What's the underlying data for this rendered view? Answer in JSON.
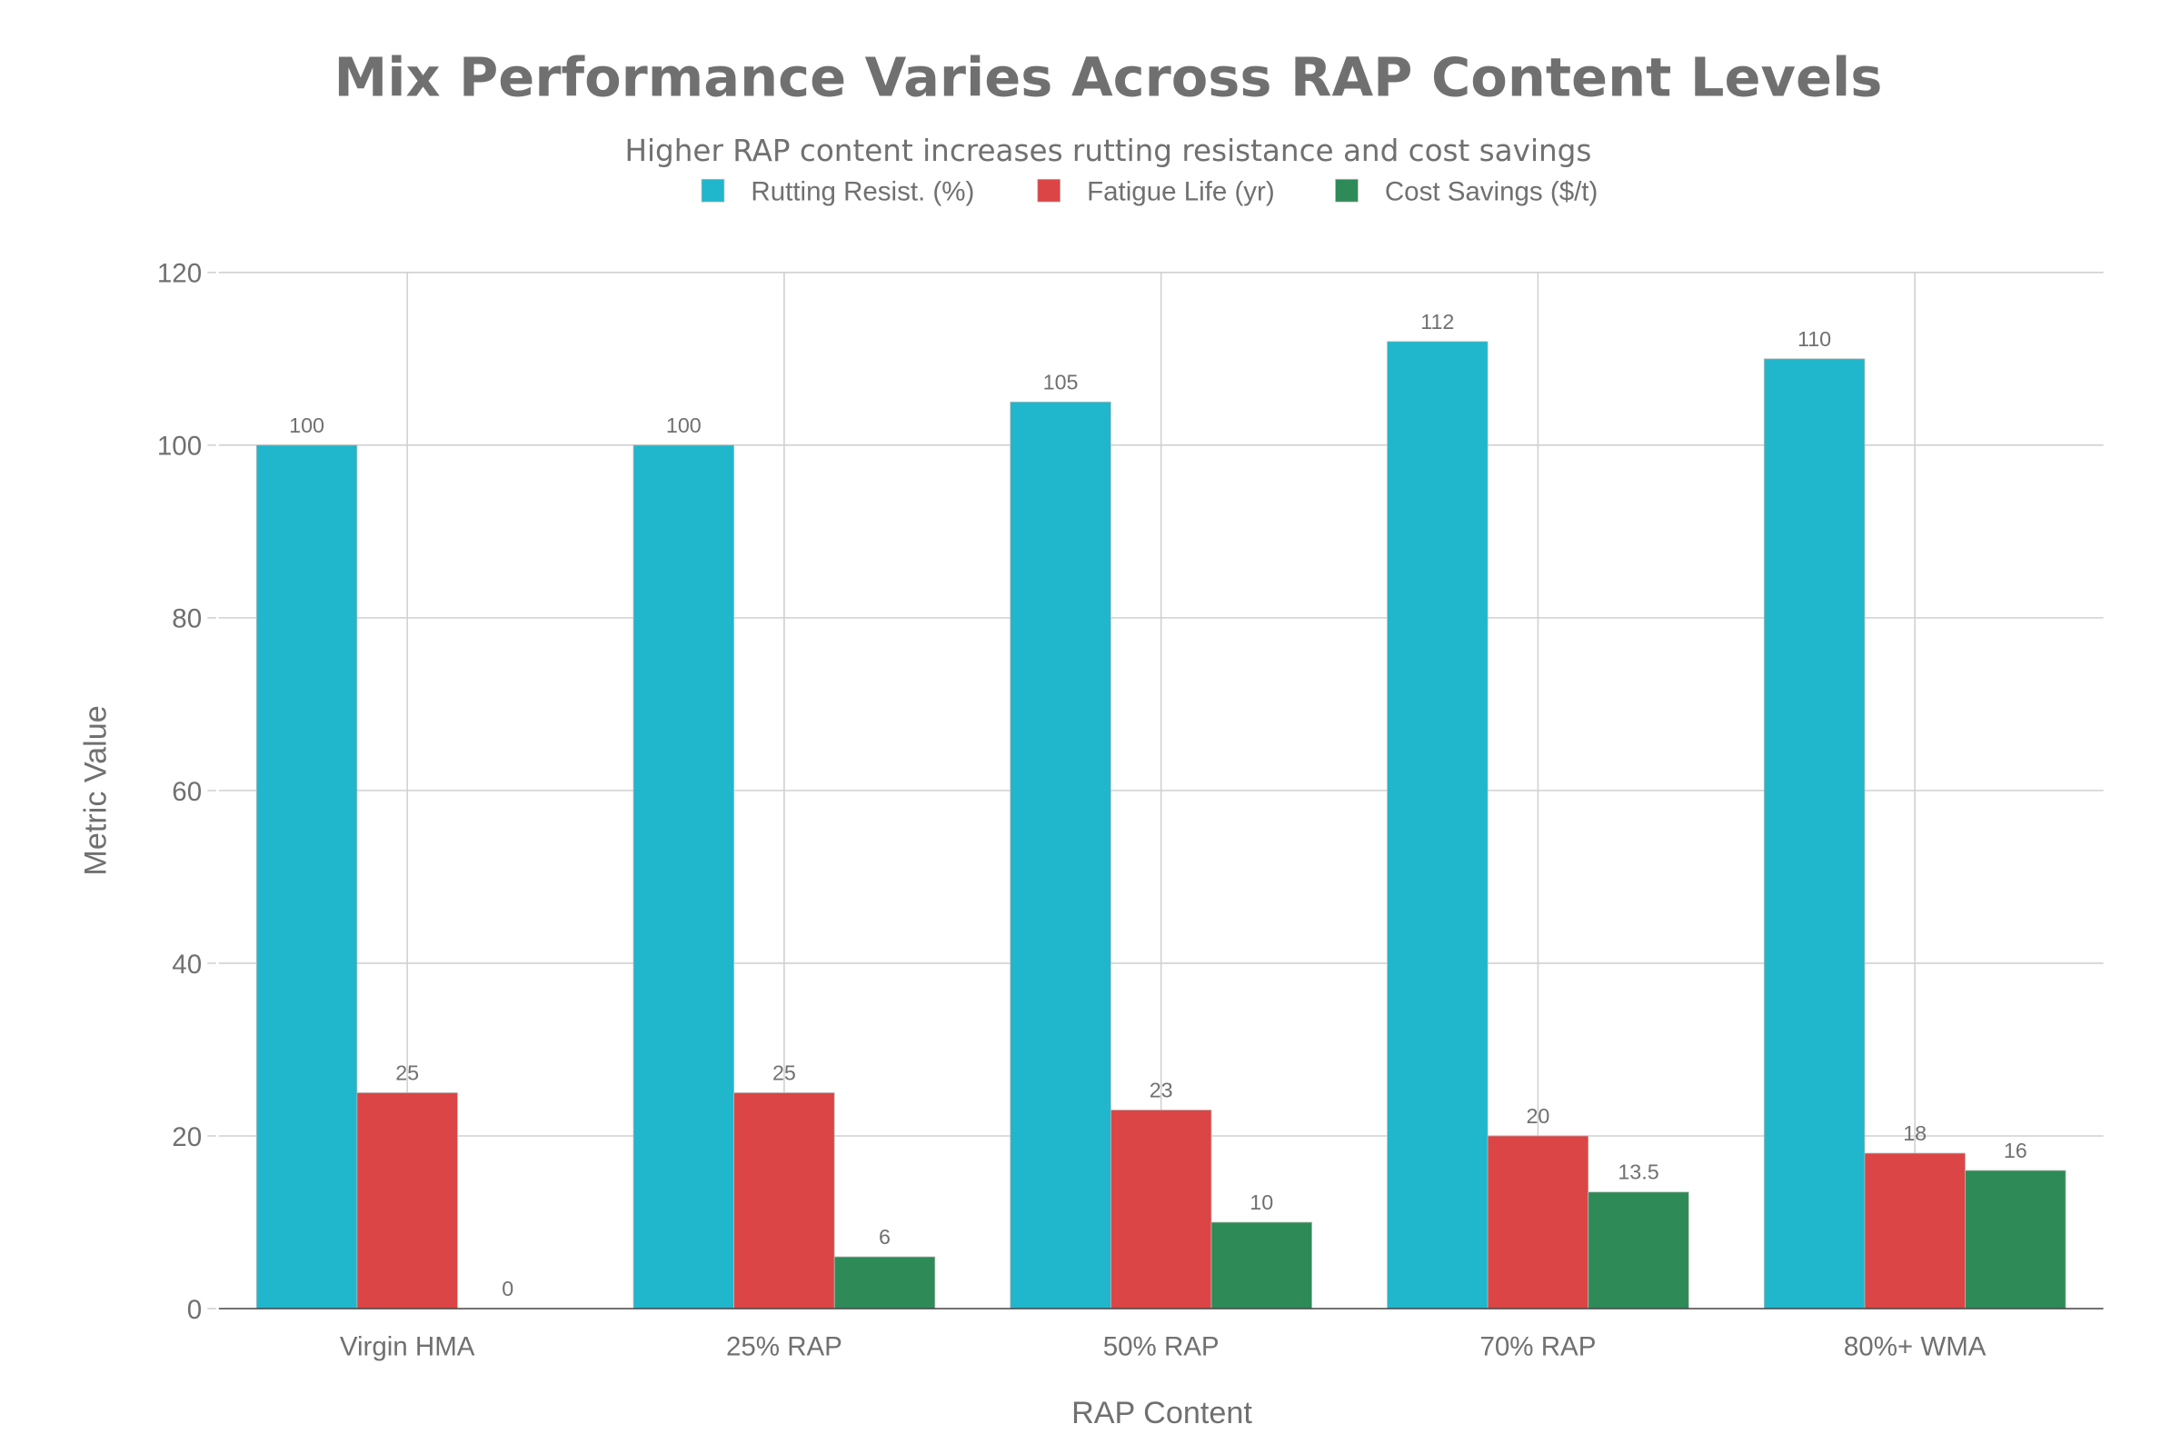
{
  "chart_data": {
    "type": "bar",
    "title": "Mix Performance Varies Across RAP Content Levels",
    "subtitle": "Higher RAP content increases rutting resistance and cost savings",
    "xlabel": "RAP Content",
    "ylabel": "Metric Value",
    "categories": [
      "Virgin HMA",
      "25% RAP",
      "50% RAP",
      "70% RAP",
      "80%+ WMA"
    ],
    "series": [
      {
        "name": "Rutting Resist. (%)",
        "color": "#20B6CC",
        "values": [
          100,
          100,
          105,
          112,
          110
        ],
        "labels": [
          "100",
          "100",
          "105",
          "112",
          "110"
        ]
      },
      {
        "name": "Fatigue Life (yr)",
        "color": "#DC4545",
        "values": [
          25,
          25,
          23,
          20,
          18
        ],
        "labels": [
          "25",
          "25",
          "23",
          "20",
          "18"
        ]
      },
      {
        "name": "Cost Savings ($/t)",
        "color": "#2E8B57",
        "values": [
          0,
          6,
          10,
          13.5,
          16
        ],
        "labels": [
          "0",
          "6",
          "10",
          "13.5",
          "16"
        ]
      }
    ],
    "ylim": [
      0,
      120
    ],
    "yticks": [
      "0",
      "20",
      "40",
      "60",
      "80",
      "100",
      "120"
    ],
    "grid": true,
    "legend_position": "top-center"
  }
}
